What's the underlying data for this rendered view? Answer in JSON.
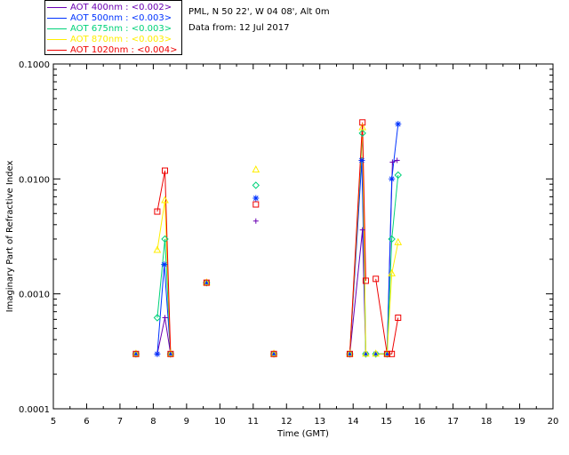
{
  "legend": [
    {
      "label": "AOT  400nm : <0.002>",
      "color": "#6a00b3"
    },
    {
      "label": "AOT  500nm : <0.003>",
      "color": "#0033ff"
    },
    {
      "label": "AOT  675nm : <0.003>",
      "color": "#00d27a"
    },
    {
      "label": "AOT  870nm : <0.003>",
      "color": "#ffee00"
    },
    {
      "label": "AOT 1020nm : <0.004>",
      "color": "#ee0000"
    }
  ],
  "info": {
    "site": "PML, N 50 22', W 04 08', Alt 0m",
    "date": "Data from: 12 Jul 2017"
  },
  "chart_data": {
    "type": "line",
    "xlabel": "Time (GMT)",
    "ylabel": "Imaginary Part of Refractive Index",
    "xlim": [
      5,
      20
    ],
    "ylim": [
      0.0001,
      0.1
    ],
    "yscale": "log",
    "xticks": [
      "5",
      "6",
      "7",
      "8",
      "9",
      "10",
      "11",
      "12",
      "13",
      "14",
      "15",
      "16",
      "17",
      "18",
      "19",
      "20"
    ],
    "yticks": [
      "0.0001",
      "0.0010",
      "0.0100",
      "0.1000"
    ],
    "series": [
      {
        "name": "AOT  400nm : <0.002>",
        "color": "#6a00b3",
        "marker": "plus",
        "x": [
          7.48,
          8.12,
          8.35,
          8.52,
          9.6,
          11.08,
          11.62,
          13.9,
          14.28,
          14.38,
          14.68,
          15.02,
          15.18,
          15.32
        ],
        "y": [
          0.0003,
          0.0003,
          0.00062,
          0.0003,
          0.00125,
          0.0043,
          0.0003,
          0.0003,
          0.0036,
          0.0003,
          0.0003,
          0.0003,
          0.014,
          0.0145
        ],
        "segments": [
          [
            1,
            3
          ],
          [
            7,
            9
          ],
          [
            10,
            13
          ]
        ]
      },
      {
        "name": "AOT  500nm : <0.003>",
        "color": "#0033ff",
        "marker": "asterisk",
        "x": [
          7.48,
          8.12,
          8.33,
          8.52,
          9.6,
          11.08,
          11.62,
          13.9,
          14.26,
          14.38,
          14.68,
          15.02,
          15.16,
          15.35
        ],
        "y": [
          0.0003,
          0.0003,
          0.0018,
          0.0003,
          0.00125,
          0.0068,
          0.0003,
          0.0003,
          0.0145,
          0.0003,
          0.0003,
          0.0003,
          0.01,
          0.03
        ],
        "segments": [
          [
            1,
            3
          ],
          [
            7,
            9
          ],
          [
            10,
            13
          ]
        ]
      },
      {
        "name": "AOT  675nm : <0.003>",
        "color": "#00d27a",
        "marker": "diamond",
        "x": [
          7.48,
          8.12,
          8.35,
          8.52,
          9.6,
          11.08,
          11.62,
          13.9,
          14.28,
          14.38,
          14.68,
          15.02,
          15.16,
          15.35
        ],
        "y": [
          0.0003,
          0.00062,
          0.003,
          0.0003,
          0.00125,
          0.0088,
          0.0003,
          0.0003,
          0.025,
          0.0003,
          0.0003,
          0.0003,
          0.003,
          0.0108
        ],
        "segments": [
          [
            1,
            3
          ],
          [
            7,
            9
          ],
          [
            10,
            13
          ]
        ]
      },
      {
        "name": "AOT  870nm : <0.003>",
        "color": "#ffee00",
        "marker": "triangle",
        "x": [
          7.48,
          8.12,
          8.35,
          8.52,
          9.6,
          11.08,
          11.62,
          13.9,
          14.28,
          14.38,
          14.68,
          15.02,
          15.16,
          15.35
        ],
        "y": [
          0.0003,
          0.0024,
          0.0065,
          0.0003,
          0.00125,
          0.012,
          0.0003,
          0.0003,
          0.028,
          0.0003,
          0.0003,
          0.0003,
          0.0015,
          0.0028
        ],
        "segments": [
          [
            1,
            3
          ],
          [
            7,
            9
          ],
          [
            10,
            13
          ]
        ]
      },
      {
        "name": "AOT 1020nm : <0.004>",
        "color": "#ee0000",
        "marker": "square",
        "x": [
          7.48,
          8.12,
          8.35,
          8.52,
          9.6,
          11.08,
          11.62,
          13.9,
          14.28,
          14.38,
          14.68,
          15.02,
          15.16,
          15.35
        ],
        "y": [
          0.0003,
          0.0052,
          0.0118,
          0.0003,
          0.00125,
          0.006,
          0.0003,
          0.0003,
          0.031,
          0.0013,
          0.00135,
          0.0003,
          0.0003,
          0.00062
        ],
        "segments": [
          [
            1,
            3
          ],
          [
            7,
            9
          ],
          [
            10,
            13
          ]
        ]
      }
    ]
  }
}
